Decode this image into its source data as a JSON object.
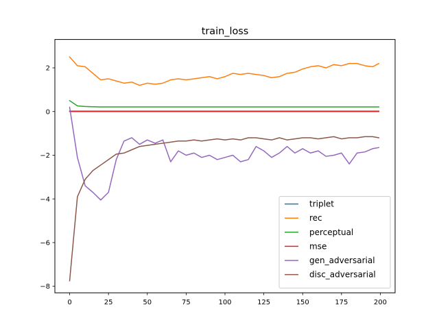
{
  "chart_data": {
    "type": "line",
    "title": "train_loss",
    "xlabel": "",
    "ylabel": "",
    "xlim": [
      -9.5,
      209.5
    ],
    "ylim": [
      -8.3,
      3.3
    ],
    "xticks": [
      0,
      25,
      50,
      75,
      100,
      125,
      150,
      175,
      200
    ],
    "yticks": [
      -8,
      -6,
      -4,
      -2,
      0,
      2
    ],
    "grid": false,
    "legend_position": "lower-right",
    "x": [
      0,
      5,
      10,
      15,
      20,
      25,
      30,
      35,
      40,
      45,
      50,
      55,
      60,
      65,
      70,
      75,
      80,
      85,
      90,
      95,
      100,
      105,
      110,
      115,
      120,
      125,
      130,
      135,
      140,
      145,
      150,
      155,
      160,
      165,
      170,
      175,
      180,
      185,
      190,
      195,
      199
    ],
    "series": [
      {
        "name": "triplet",
        "color": "#1f77b4",
        "values": [
          0.02,
          0.02,
          0.02,
          0.02,
          0.02,
          0.02,
          0.02,
          0.02,
          0.02,
          0.02,
          0.02,
          0.02,
          0.02,
          0.02,
          0.02,
          0.02,
          0.02,
          0.02,
          0.02,
          0.02,
          0.02,
          0.02,
          0.02,
          0.02,
          0.02,
          0.02,
          0.02,
          0.02,
          0.02,
          0.02,
          0.02,
          0.02,
          0.02,
          0.02,
          0.02,
          0.02,
          0.02,
          0.02,
          0.02,
          0.02,
          0.02
        ]
      },
      {
        "name": "rec",
        "color": "#ff7f0e",
        "values": [
          2.5,
          2.1,
          2.05,
          1.75,
          1.45,
          1.5,
          1.4,
          1.3,
          1.35,
          1.2,
          1.3,
          1.25,
          1.3,
          1.45,
          1.5,
          1.45,
          1.5,
          1.55,
          1.6,
          1.5,
          1.6,
          1.75,
          1.7,
          1.75,
          1.7,
          1.65,
          1.55,
          1.6,
          1.75,
          1.8,
          1.95,
          2.05,
          2.1,
          2.0,
          2.15,
          2.1,
          2.2,
          2.2,
          2.1,
          2.05,
          2.2
        ]
      },
      {
        "name": "perceptual",
        "color": "#2ca02c",
        "values": [
          0.5,
          0.26,
          0.23,
          0.22,
          0.21,
          0.21,
          0.21,
          0.21,
          0.21,
          0.21,
          0.21,
          0.21,
          0.21,
          0.21,
          0.21,
          0.21,
          0.21,
          0.21,
          0.21,
          0.21,
          0.21,
          0.21,
          0.21,
          0.21,
          0.21,
          0.21,
          0.21,
          0.21,
          0.21,
          0.21,
          0.21,
          0.21,
          0.21,
          0.21,
          0.21,
          0.21,
          0.21,
          0.21,
          0.21,
          0.21,
          0.21
        ]
      },
      {
        "name": "mse",
        "color": "#d62728",
        "values": [
          0.0,
          0.0,
          0.0,
          0.0,
          0.0,
          0.0,
          0.0,
          0.0,
          0.0,
          0.0,
          0.0,
          0.0,
          0.0,
          0.0,
          0.0,
          0.0,
          0.0,
          0.0,
          0.0,
          0.0,
          0.0,
          0.0,
          0.0,
          0.0,
          0.0,
          0.0,
          0.0,
          0.0,
          0.0,
          0.0,
          0.0,
          0.0,
          0.0,
          0.0,
          0.0,
          0.0,
          0.0,
          0.0,
          0.0,
          0.0,
          0.0
        ]
      },
      {
        "name": "gen_adversarial",
        "color": "#9467bd",
        "values": [
          0.2,
          -2.1,
          -3.4,
          -3.7,
          -4.05,
          -3.7,
          -2.2,
          -1.35,
          -1.2,
          -1.5,
          -1.3,
          -1.45,
          -1.3,
          -2.3,
          -1.8,
          -2.0,
          -1.9,
          -2.1,
          -2.0,
          -2.2,
          -2.1,
          -2.0,
          -2.3,
          -2.2,
          -1.6,
          -1.8,
          -2.1,
          -1.9,
          -1.6,
          -1.9,
          -1.7,
          -1.9,
          -1.8,
          -2.05,
          -2.0,
          -1.9,
          -2.4,
          -1.9,
          -1.85,
          -1.7,
          -1.65
        ]
      },
      {
        "name": "disc_adversarial",
        "color": "#8c564b",
        "values": [
          -7.75,
          -3.9,
          -3.1,
          -2.7,
          -2.45,
          -2.2,
          -1.95,
          -1.9,
          -1.75,
          -1.6,
          -1.55,
          -1.5,
          -1.45,
          -1.4,
          -1.35,
          -1.35,
          -1.3,
          -1.35,
          -1.3,
          -1.25,
          -1.3,
          -1.25,
          -1.3,
          -1.2,
          -1.2,
          -1.25,
          -1.3,
          -1.2,
          -1.3,
          -1.25,
          -1.2,
          -1.2,
          -1.25,
          -1.2,
          -1.15,
          -1.25,
          -1.2,
          -1.2,
          -1.15,
          -1.15,
          -1.2
        ]
      }
    ]
  }
}
